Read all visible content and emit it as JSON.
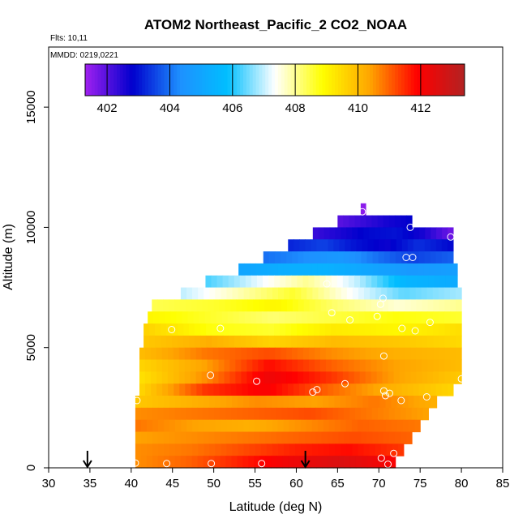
{
  "chart_data": {
    "type": "heatmap",
    "title": "ATOM2 Northeast_Pacific_2 CO2_NOAA",
    "flights_text": "Flts: 10,11",
    "dates_text": "MMDD: 0219,0221",
    "xlabel": "Latitude (deg N)",
    "ylabel": "Altitude (m)",
    "xlim": [
      30,
      85
    ],
    "ylim": [
      0,
      17500
    ],
    "x_ticks": [
      "30",
      "35",
      "40",
      "45",
      "50",
      "55",
      "60",
      "65",
      "70",
      "75",
      "80",
      "85"
    ],
    "y_ticks": [
      "0",
      "5000",
      "10000",
      "15000"
    ],
    "colorbar": {
      "range": [
        401.3,
        413.4
      ],
      "tick_labels": [
        "402",
        "404",
        "406",
        "408",
        "410",
        "412"
      ],
      "colors": [
        "#a020f0",
        "#0000cd",
        "#1e90ff",
        "#00bfff",
        "#ffffff",
        "#ffff00",
        "#ffa500",
        "#ff0000",
        "#b22222"
      ]
    },
    "field": {
      "bands": [
        {
          "alt_min": 10500,
          "alt_max": 11000,
          "lat_min": 67.8,
          "lat_max": 68.4,
          "co2": [
            401.5
          ]
        },
        {
          "alt_min": 10000,
          "alt_max": 10500,
          "lat_min": 65.0,
          "lat_max": 74.0,
          "co2": [
            402.0,
            402.3,
            402.6,
            402.8
          ]
        },
        {
          "alt_min": 9500,
          "alt_max": 10000,
          "lat_min": 62.0,
          "lat_max": 79.0,
          "co2": [
            402.3,
            402.6,
            402.9,
            403.0,
            402.6,
            401.8
          ]
        },
        {
          "alt_min": 9000,
          "alt_max": 9500,
          "lat_min": 59.0,
          "lat_max": 79.0,
          "co2": [
            403.2,
            403.5,
            403.0,
            402.7,
            403.3,
            402.9
          ]
        },
        {
          "alt_min": 8500,
          "alt_max": 9000,
          "lat_min": 56.0,
          "lat_max": 79.0,
          "co2": [
            404.0,
            404.3,
            404.6,
            404.0,
            403.5,
            403.8
          ]
        },
        {
          "alt_min": 8000,
          "alt_max": 8500,
          "lat_min": 53.0,
          "lat_max": 79.5,
          "co2": [
            405.0,
            405.3,
            405.4,
            405.0,
            404.6,
            404.8
          ]
        },
        {
          "alt_min": 7500,
          "alt_max": 8000,
          "lat_min": 49.0,
          "lat_max": 79.5,
          "co2": [
            406.3,
            407.2,
            408.0,
            407.0,
            405.5,
            405.2
          ]
        },
        {
          "alt_min": 7000,
          "alt_max": 7500,
          "lat_min": 46.0,
          "lat_max": 80.0,
          "co2": [
            407.0,
            407.8,
            408.6,
            407.4,
            406.4,
            406.8
          ]
        },
        {
          "alt_min": 6500,
          "alt_max": 7000,
          "lat_min": 42.5,
          "lat_max": 80.0,
          "co2": [
            408.4,
            408.6,
            409.0,
            408.2,
            407.6,
            408.0
          ]
        },
        {
          "alt_min": 6000,
          "alt_max": 6500,
          "lat_min": 42.0,
          "lat_max": 80.0,
          "co2": [
            409.0,
            408.6,
            408.2,
            408.5,
            408.8,
            408.6
          ]
        },
        {
          "alt_min": 5500,
          "alt_max": 6000,
          "lat_min": 41.5,
          "lat_max": 80.0,
          "co2": [
            409.6,
            408.8,
            408.6,
            409.2,
            409.0,
            409.4
          ]
        },
        {
          "alt_min": 5000,
          "alt_max": 5500,
          "lat_min": 41.5,
          "lat_max": 80.0,
          "co2": [
            409.8,
            410.2,
            409.6,
            410.0,
            409.8,
            409.5
          ]
        },
        {
          "alt_min": 4500,
          "alt_max": 5000,
          "lat_min": 41.0,
          "lat_max": 80.0,
          "co2": [
            410.0,
            410.8,
            411.2,
            410.6,
            410.2,
            410.0
          ]
        },
        {
          "alt_min": 4000,
          "alt_max": 4500,
          "lat_min": 41.0,
          "lat_max": 80.0,
          "co2": [
            409.6,
            410.4,
            411.8,
            411.0,
            410.4,
            410.0
          ]
        },
        {
          "alt_min": 3500,
          "alt_max": 4000,
          "lat_min": 41.0,
          "lat_max": 80.0,
          "co2": [
            409.4,
            410.6,
            412.2,
            411.4,
            410.4,
            409.8
          ]
        },
        {
          "alt_min": 3000,
          "alt_max": 3500,
          "lat_min": 41.0,
          "lat_max": 79.0,
          "co2": [
            409.6,
            411.4,
            412.0,
            411.0,
            410.2,
            409.6
          ]
        },
        {
          "alt_min": 2500,
          "alt_max": 3000,
          "lat_min": 40.5,
          "lat_max": 77.0,
          "co2": [
            409.8,
            410.2,
            410.6,
            410.4,
            410.8,
            410.2
          ]
        },
        {
          "alt_min": 2000,
          "alt_max": 2500,
          "lat_min": 40.5,
          "lat_max": 76.0,
          "co2": [
            410.6,
            410.8,
            411.0,
            411.2,
            410.8,
            410.4
          ]
        },
        {
          "alt_min": 1500,
          "alt_max": 2000,
          "lat_min": 40.5,
          "lat_max": 75.0,
          "co2": [
            410.8,
            410.4,
            410.2,
            410.6,
            411.0,
            410.8
          ]
        },
        {
          "alt_min": 1000,
          "alt_max": 1500,
          "lat_min": 40.5,
          "lat_max": 74.0,
          "co2": [
            410.4,
            410.6,
            410.8,
            411.0,
            411.2,
            411.0
          ]
        },
        {
          "alt_min": 500,
          "alt_max": 1000,
          "lat_min": 40.5,
          "lat_max": 73.0,
          "co2": [
            410.6,
            410.8,
            411.2,
            411.6,
            411.8,
            411.4
          ]
        },
        {
          "alt_min": 0,
          "alt_max": 500,
          "lat_min": 40.5,
          "lat_max": 72.0,
          "co2": [
            410.6,
            411.0,
            411.6,
            412.2,
            412.6,
            412.0
          ]
        }
      ]
    },
    "observation_points": [
      {
        "lat": 68.0,
        "alt": 10650
      },
      {
        "lat": 73.8,
        "alt": 10000
      },
      {
        "lat": 78.7,
        "alt": 9600
      },
      {
        "lat": 73.3,
        "alt": 8750
      },
      {
        "lat": 74.1,
        "alt": 8750
      },
      {
        "lat": 63.7,
        "alt": 7650
      },
      {
        "lat": 70.5,
        "alt": 7050
      },
      {
        "lat": 70.2,
        "alt": 6800
      },
      {
        "lat": 64.3,
        "alt": 6450
      },
      {
        "lat": 66.5,
        "alt": 6150
      },
      {
        "lat": 69.8,
        "alt": 6300
      },
      {
        "lat": 76.2,
        "alt": 6050
      },
      {
        "lat": 44.9,
        "alt": 5750
      },
      {
        "lat": 50.8,
        "alt": 5800
      },
      {
        "lat": 72.8,
        "alt": 5800
      },
      {
        "lat": 74.4,
        "alt": 5700
      },
      {
        "lat": 70.6,
        "alt": 4650
      },
      {
        "lat": 49.6,
        "alt": 3850
      },
      {
        "lat": 55.2,
        "alt": 3600
      },
      {
        "lat": 65.9,
        "alt": 3500
      },
      {
        "lat": 80.0,
        "alt": 3700
      },
      {
        "lat": 62.5,
        "alt": 3250
      },
      {
        "lat": 62.0,
        "alt": 3150
      },
      {
        "lat": 70.6,
        "alt": 3200
      },
      {
        "lat": 71.3,
        "alt": 3100
      },
      {
        "lat": 70.8,
        "alt": 3000
      },
      {
        "lat": 75.8,
        "alt": 2950
      },
      {
        "lat": 72.7,
        "alt": 2800
      },
      {
        "lat": 40.7,
        "alt": 2800
      },
      {
        "lat": 71.8,
        "alt": 600
      },
      {
        "lat": 70.3,
        "alt": 400
      },
      {
        "lat": 71.1,
        "alt": 150
      },
      {
        "lat": 40.5,
        "alt": 200
      },
      {
        "lat": 44.3,
        "alt": 180
      },
      {
        "lat": 49.7,
        "alt": 180
      },
      {
        "lat": 55.8,
        "alt": 180
      }
    ],
    "arrows": [
      {
        "lat": 34.7,
        "label": ""
      },
      {
        "lat": 61.1,
        "label": ""
      }
    ]
  }
}
